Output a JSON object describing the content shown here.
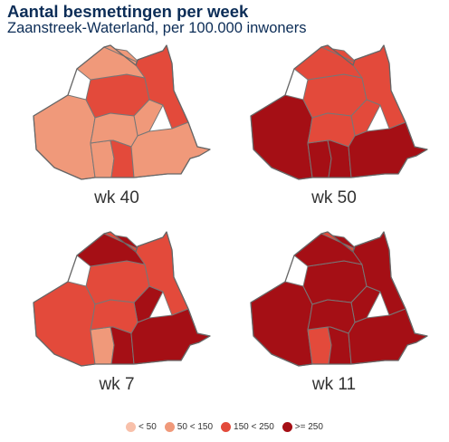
{
  "header": {
    "title": "Aantal besmettingen per week",
    "subtitle": "Zaanstreek-Waterland, per 100.000 inwoners"
  },
  "legend": [
    {
      "label": "< 50",
      "color": "#f8c0aa"
    },
    {
      "label": "50 < 150",
      "color": "#f0997a"
    },
    {
      "label": "150 < 250",
      "color": "#e34a3b"
    },
    {
      "label": ">= 250",
      "color": "#a50f15"
    }
  ],
  "panels": [
    {
      "label": "wk 40",
      "classes": [
        1,
        2,
        1,
        1,
        1,
        2,
        1,
        1,
        2,
        1
      ]
    },
    {
      "label": "wk 50",
      "classes": [
        3,
        2,
        2,
        2,
        2,
        2,
        3,
        2,
        3,
        3
      ]
    },
    {
      "label": "wk 7",
      "classes": [
        2,
        2,
        3,
        2,
        3,
        2,
        1,
        2,
        3,
        3
      ]
    },
    {
      "label": "wk 11",
      "classes": [
        3,
        3,
        3,
        2,
        3,
        3,
        2,
        3,
        3,
        3
      ]
    }
  ]
}
